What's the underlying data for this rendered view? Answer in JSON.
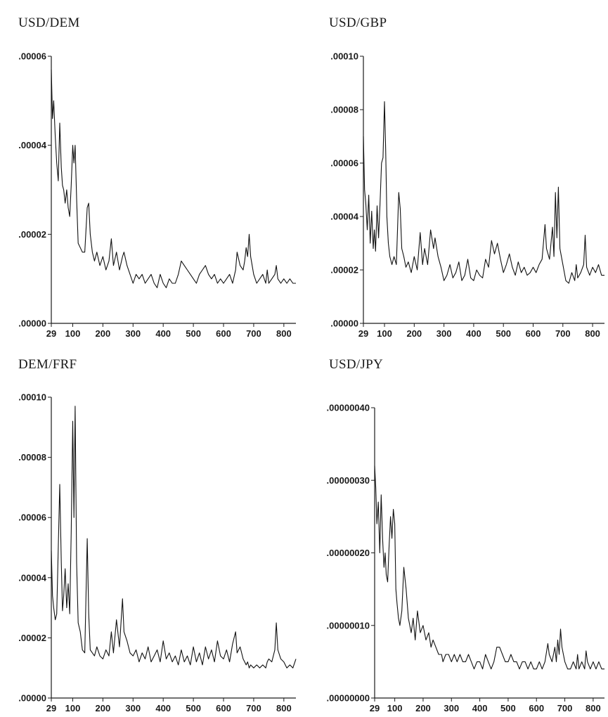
{
  "chart_data": [
    {
      "type": "line",
      "title": "USD/DEM",
      "xlim": [
        29,
        840
      ],
      "ylim": [
        0,
        6e-05
      ],
      "x_ticks": [
        29,
        100,
        200,
        300,
        400,
        500,
        600,
        700,
        800
      ],
      "y_ticks": [
        0,
        2e-05,
        4e-05,
        6e-05
      ],
      "y_tick_labels": [
        ".00000",
        ".00002",
        ".00004",
        ".00006"
      ],
      "grid": false,
      "series": [
        {
          "x": [
            29,
            33,
            37,
            42,
            47,
            52,
            57,
            62,
            66,
            70,
            75,
            80,
            85,
            90,
            95,
            100,
            104,
            108,
            113,
            118,
            125,
            132,
            140,
            148,
            153,
            158,
            165,
            172,
            180,
            190,
            200,
            210,
            220,
            228,
            235,
            245,
            255,
            265,
            270,
            280,
            290,
            300,
            310,
            320,
            330,
            340,
            350,
            360,
            370,
            380,
            390,
            400,
            410,
            420,
            430,
            440,
            450,
            460,
            470,
            480,
            490,
            500,
            510,
            520,
            530,
            540,
            550,
            560,
            570,
            580,
            590,
            600,
            610,
            620,
            630,
            640,
            645,
            655,
            665,
            670,
            675,
            680,
            685,
            690,
            700,
            710,
            720,
            730,
            740,
            745,
            750,
            760,
            770,
            775,
            780,
            790,
            800,
            810,
            820,
            830,
            840
          ],
          "y": [
            5.7e-05,
            4.6e-05,
            5e-05,
            4.2e-05,
            3.6e-05,
            3.2e-05,
            4.5e-05,
            3.5e-05,
            3.1e-05,
            3e-05,
            2.7e-05,
            3e-05,
            2.6e-05,
            2.4e-05,
            3.1e-05,
            4e-05,
            3.6e-05,
            4e-05,
            2.8e-05,
            1.8e-05,
            1.7e-05,
            1.6e-05,
            1.6e-05,
            2.6e-05,
            2.7e-05,
            2e-05,
            1.6e-05,
            1.4e-05,
            1.6e-05,
            1.3e-05,
            1.5e-05,
            1.2e-05,
            1.4e-05,
            1.9e-05,
            1.3e-05,
            1.6e-05,
            1.2e-05,
            1.5e-05,
            1.6e-05,
            1.3e-05,
            1.1e-05,
            9e-06,
            1.1e-05,
            1e-05,
            1.1e-05,
            9e-06,
            1e-05,
            1.1e-05,
            9e-06,
            8e-06,
            1.1e-05,
            9e-06,
            8e-06,
            1e-05,
            9e-06,
            9e-06,
            1.1e-05,
            1.4e-05,
            1.3e-05,
            1.2e-05,
            1.1e-05,
            1e-05,
            9e-06,
            1.1e-05,
            1.2e-05,
            1.3e-05,
            1.1e-05,
            1e-05,
            1.1e-05,
            9e-06,
            1e-05,
            9e-06,
            1e-05,
            1.1e-05,
            9e-06,
            1.2e-05,
            1.6e-05,
            1.3e-05,
            1.2e-05,
            1.4e-05,
            1.7e-05,
            1.5e-05,
            2e-05,
            1.5e-05,
            1.1e-05,
            9e-06,
            1e-05,
            1.1e-05,
            9e-06,
            1.2e-05,
            9e-06,
            1e-05,
            1.1e-05,
            1.3e-05,
            1e-05,
            9e-06,
            1e-05,
            9e-06,
            1e-05,
            9e-06,
            9e-06
          ]
        }
      ]
    },
    {
      "type": "line",
      "title": "USD/GBP",
      "xlim": [
        29,
        840
      ],
      "ylim": [
        0,
        0.0001
      ],
      "x_ticks": [
        29,
        100,
        200,
        300,
        400,
        500,
        600,
        700,
        800
      ],
      "y_ticks": [
        0,
        2e-05,
        4e-05,
        6e-05,
        8e-05,
        0.0001
      ],
      "y_tick_labels": [
        ".00000",
        ".00002",
        ".00004",
        ".00006",
        ".00008",
        ".00010"
      ],
      "grid": false,
      "series": [
        {
          "x": [
            29,
            33,
            37,
            42,
            47,
            52,
            57,
            62,
            66,
            70,
            75,
            80,
            85,
            90,
            95,
            100,
            104,
            108,
            113,
            118,
            125,
            132,
            140,
            148,
            153,
            158,
            165,
            172,
            180,
            190,
            200,
            210,
            220,
            228,
            235,
            245,
            255,
            265,
            270,
            280,
            290,
            300,
            310,
            320,
            330,
            340,
            350,
            360,
            370,
            380,
            390,
            400,
            410,
            420,
            430,
            440,
            450,
            460,
            470,
            480,
            490,
            500,
            510,
            520,
            530,
            540,
            550,
            560,
            570,
            580,
            590,
            600,
            610,
            620,
            630,
            640,
            645,
            655,
            665,
            670,
            675,
            680,
            685,
            690,
            700,
            710,
            720,
            730,
            740,
            745,
            750,
            760,
            770,
            775,
            780,
            790,
            800,
            810,
            820,
            830,
            840
          ],
          "y": [
            7e-05,
            5e-05,
            4.5e-05,
            3.5e-05,
            4.8e-05,
            3e-05,
            4.2e-05,
            2.8e-05,
            3.5e-05,
            2.7e-05,
            4.4e-05,
            3.2e-05,
            4.5e-05,
            6e-05,
            6.2e-05,
            8.3e-05,
            6.5e-05,
            4e-05,
            3e-05,
            2.5e-05,
            2.2e-05,
            2.5e-05,
            2.2e-05,
            4.9e-05,
            4.3e-05,
            2.8e-05,
            2.5e-05,
            2.1e-05,
            2.3e-05,
            1.9e-05,
            2.5e-05,
            2e-05,
            3.4e-05,
            2.2e-05,
            2.8e-05,
            2.2e-05,
            3.5e-05,
            2.8e-05,
            3.2e-05,
            2.5e-05,
            2.1e-05,
            1.6e-05,
            1.8e-05,
            2.2e-05,
            1.7e-05,
            1.9e-05,
            2.3e-05,
            1.6e-05,
            1.8e-05,
            2.4e-05,
            1.7e-05,
            1.6e-05,
            2e-05,
            1.8e-05,
            1.7e-05,
            2.4e-05,
            2.1e-05,
            3.1e-05,
            2.6e-05,
            3e-05,
            2.4e-05,
            1.9e-05,
            2.2e-05,
            2.6e-05,
            2.1e-05,
            1.8e-05,
            2.3e-05,
            1.9e-05,
            2.1e-05,
            1.8e-05,
            1.9e-05,
            2.1e-05,
            1.9e-05,
            2.2e-05,
            2.4e-05,
            3.7e-05,
            2.8e-05,
            2.4e-05,
            3.6e-05,
            2.5e-05,
            4.9e-05,
            3.2e-05,
            5.1e-05,
            2.8e-05,
            2.2e-05,
            1.6e-05,
            1.5e-05,
            1.9e-05,
            1.6e-05,
            2.2e-05,
            1.7e-05,
            1.9e-05,
            2.2e-05,
            3.3e-05,
            2.1e-05,
            1.8e-05,
            2.1e-05,
            1.9e-05,
            2.2e-05,
            1.8e-05,
            1.8e-05
          ]
        }
      ]
    },
    {
      "type": "line",
      "title": "DEM/FRF",
      "xlim": [
        29,
        840
      ],
      "ylim": [
        0,
        0.0001
      ],
      "x_ticks": [
        29,
        100,
        200,
        300,
        400,
        500,
        600,
        700,
        800
      ],
      "y_ticks": [
        0,
        2e-05,
        4e-05,
        6e-05,
        8e-05,
        0.0001
      ],
      "y_tick_labels": [
        ".00000",
        ".00002",
        ".00004",
        ".00006",
        ".00008",
        ".00010"
      ],
      "grid": false,
      "series": [
        {
          "x": [
            29,
            33,
            37,
            42,
            47,
            52,
            57,
            62,
            66,
            70,
            75,
            80,
            85,
            90,
            95,
            100,
            104,
            108,
            113,
            118,
            125,
            132,
            140,
            148,
            153,
            158,
            165,
            172,
            180,
            190,
            200,
            210,
            220,
            228,
            235,
            245,
            255,
            265,
            270,
            280,
            290,
            300,
            310,
            320,
            330,
            340,
            350,
            360,
            370,
            380,
            390,
            400,
            410,
            420,
            430,
            440,
            450,
            460,
            470,
            480,
            490,
            500,
            510,
            520,
            530,
            540,
            550,
            560,
            570,
            580,
            590,
            600,
            610,
            620,
            630,
            640,
            645,
            655,
            665,
            670,
            675,
            680,
            685,
            690,
            700,
            710,
            720,
            730,
            740,
            745,
            750,
            760,
            770,
            775,
            780,
            790,
            800,
            810,
            820,
            830,
            840
          ],
          "y": [
            4.9e-05,
            3.4e-05,
            3e-05,
            2.6e-05,
            2.8e-05,
            5e-05,
            7.1e-05,
            4.5e-05,
            2.9e-05,
            3.4e-05,
            4.3e-05,
            3e-05,
            3.8e-05,
            2.8e-05,
            5.5e-05,
            9.2e-05,
            6e-05,
            9.7e-05,
            4.5e-05,
            2.5e-05,
            2.2e-05,
            1.6e-05,
            1.5e-05,
            5.3e-05,
            2.8e-05,
            1.6e-05,
            1.5e-05,
            1.4e-05,
            1.7e-05,
            1.4e-05,
            1.3e-05,
            1.6e-05,
            1.4e-05,
            2.2e-05,
            1.5e-05,
            2.6e-05,
            1.7e-05,
            3.3e-05,
            2.2e-05,
            1.9e-05,
            1.5e-05,
            1.4e-05,
            1.6e-05,
            1.2e-05,
            1.5e-05,
            1.3e-05,
            1.7e-05,
            1.2e-05,
            1.4e-05,
            1.6e-05,
            1.2e-05,
            1.9e-05,
            1.3e-05,
            1.5e-05,
            1.2e-05,
            1.4e-05,
            1.1e-05,
            1.6e-05,
            1.2e-05,
            1.4e-05,
            1.1e-05,
            1.7e-05,
            1.2e-05,
            1.5e-05,
            1.1e-05,
            1.7e-05,
            1.3e-05,
            1.6e-05,
            1.2e-05,
            1.9e-05,
            1.4e-05,
            1.3e-05,
            1.6e-05,
            1.2e-05,
            1.8e-05,
            2.2e-05,
            1.5e-05,
            1.7e-05,
            1.3e-05,
            1.2e-05,
            1.1e-05,
            1.2e-05,
            1e-05,
            1.1e-05,
            1e-05,
            1.1e-05,
            1e-05,
            1.1e-05,
            1e-05,
            1.2e-05,
            1.3e-05,
            1.2e-05,
            1.6e-05,
            2.5e-05,
            1.6e-05,
            1.3e-05,
            1.2e-05,
            1e-05,
            1.1e-05,
            1e-05,
            1.3e-05
          ]
        }
      ]
    },
    {
      "type": "line",
      "title": "USD/JPY",
      "xlim": [
        29,
        840
      ],
      "ylim": [
        0,
        4e-07
      ],
      "x_ticks": [
        29,
        100,
        200,
        300,
        400,
        500,
        600,
        700,
        800
      ],
      "y_ticks": [
        0,
        1e-07,
        2e-07,
        3e-07,
        4e-07
      ],
      "y_tick_labels": [
        ".00000000",
        ".00000010",
        ".00000020",
        ".00000030",
        ".00000040"
      ],
      "grid": false,
      "series": [
        {
          "x": [
            29,
            33,
            37,
            42,
            47,
            52,
            57,
            62,
            66,
            70,
            75,
            80,
            85,
            90,
            95,
            100,
            104,
            108,
            113,
            118,
            125,
            132,
            140,
            148,
            153,
            158,
            165,
            172,
            180,
            190,
            200,
            210,
            220,
            228,
            235,
            245,
            255,
            265,
            270,
            280,
            290,
            300,
            310,
            320,
            330,
            340,
            350,
            360,
            370,
            380,
            390,
            400,
            410,
            420,
            430,
            440,
            450,
            460,
            470,
            480,
            490,
            500,
            510,
            520,
            530,
            540,
            550,
            560,
            570,
            580,
            590,
            600,
            610,
            620,
            630,
            640,
            645,
            655,
            665,
            670,
            675,
            680,
            685,
            690,
            700,
            710,
            720,
            730,
            740,
            745,
            750,
            760,
            770,
            775,
            780,
            790,
            800,
            810,
            820,
            830,
            840
          ],
          "y": [
            3.2e-07,
            2.9e-07,
            2.4e-07,
            2.7e-07,
            2e-07,
            2.8e-07,
            2.2e-07,
            1.8e-07,
            2e-07,
            1.7e-07,
            1.6e-07,
            2.1e-07,
            2.5e-07,
            2.2e-07,
            2.6e-07,
            2.4e-07,
            1.5e-07,
            1.3e-07,
            1.1e-07,
            1e-07,
            1.2e-07,
            1.8e-07,
            1.5e-07,
            1.1e-07,
            1e-07,
            9e-08,
            1.1e-07,
            8e-08,
            1.2e-07,
            9e-08,
            1e-07,
            8e-08,
            9e-08,
            7e-08,
            8e-08,
            7e-08,
            6e-08,
            6e-08,
            5e-08,
            6e-08,
            6e-08,
            5e-08,
            6e-08,
            5e-08,
            6e-08,
            5e-08,
            5e-08,
            6e-08,
            5e-08,
            4e-08,
            5e-08,
            5e-08,
            4e-08,
            6e-08,
            5e-08,
            4e-08,
            5e-08,
            7e-08,
            7e-08,
            6e-08,
            5e-08,
            5e-08,
            6e-08,
            5e-08,
            5e-08,
            4e-08,
            5e-08,
            5e-08,
            4e-08,
            5e-08,
            4e-08,
            4e-08,
            5e-08,
            4e-08,
            5e-08,
            7.5e-08,
            6e-08,
            5e-08,
            7e-08,
            5e-08,
            8e-08,
            6e-08,
            9.5e-08,
            7e-08,
            5e-08,
            4e-08,
            4e-08,
            5e-08,
            4e-08,
            6e-08,
            4e-08,
            5e-08,
            4e-08,
            6.5e-08,
            5e-08,
            4e-08,
            5e-08,
            4e-08,
            5e-08,
            4e-08,
            4e-08
          ]
        }
      ]
    }
  ]
}
